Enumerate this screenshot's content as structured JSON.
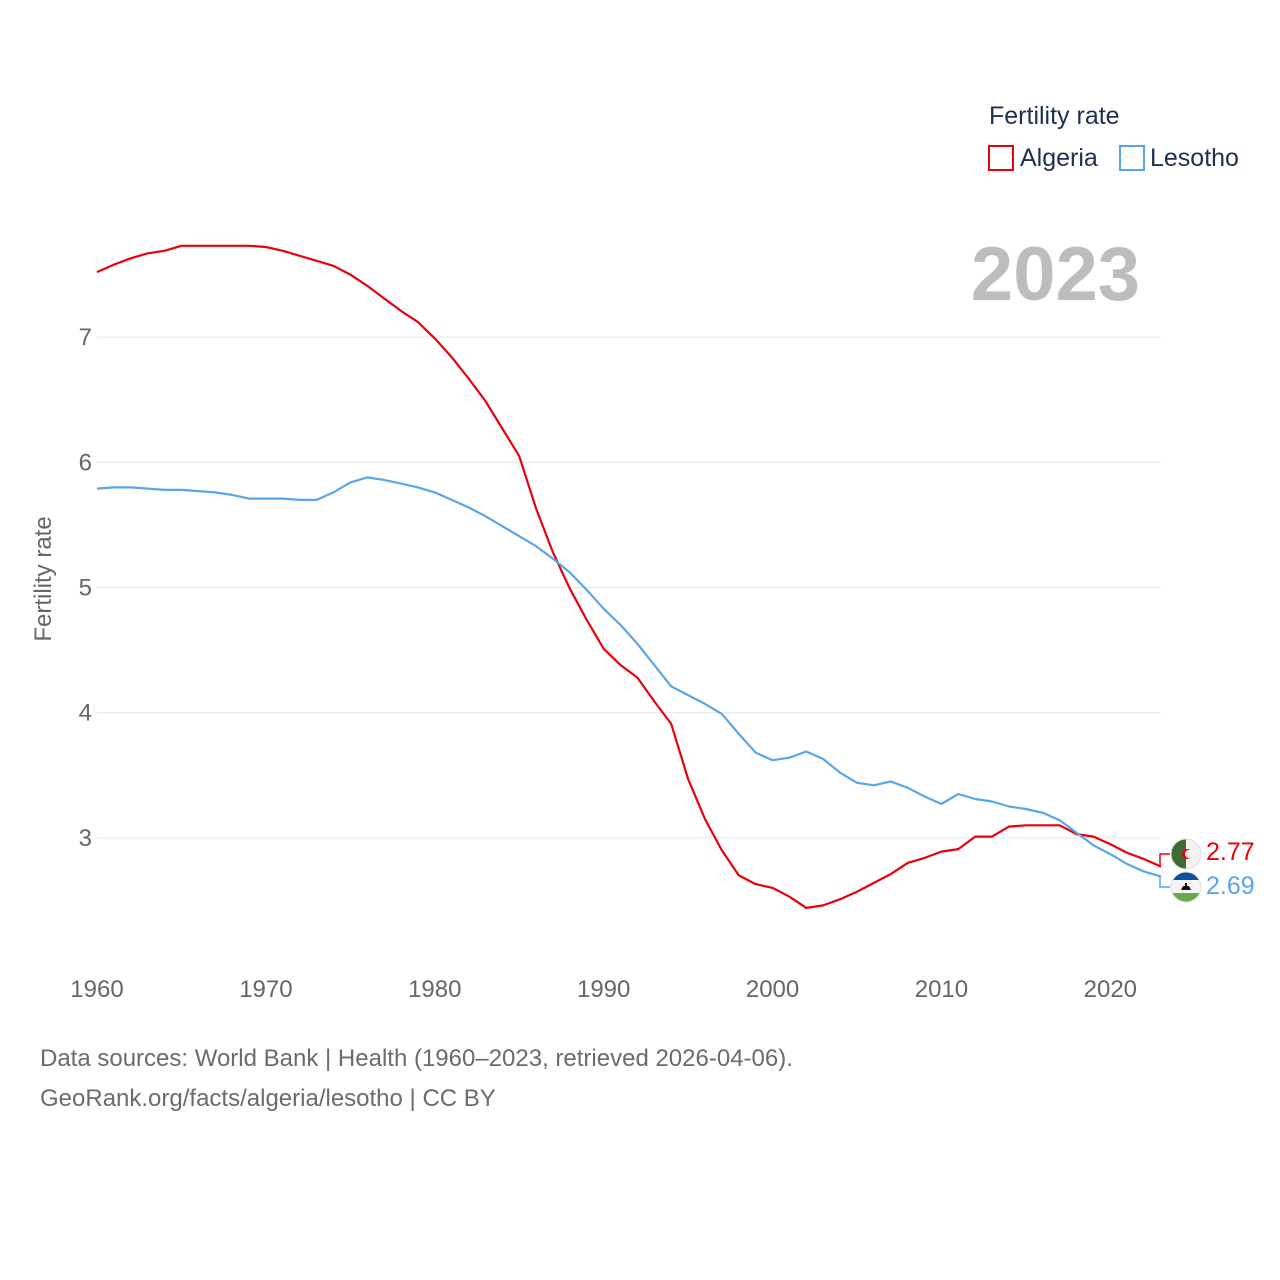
{
  "chart_data": {
    "type": "line",
    "ylabel": "Fertility rate",
    "xlabel": "",
    "xlim": [
      1960,
      2023
    ],
    "ylim": [
      2.0,
      8.0
    ],
    "x_ticks": [
      1960,
      1970,
      1980,
      1990,
      2000,
      2010,
      2020
    ],
    "y_ticks": [
      3,
      4,
      5,
      6,
      7
    ],
    "grid": true,
    "year_label": "2023",
    "legend": {
      "title": "Fertility rate",
      "placement": "top-right",
      "entries": [
        "Algeria",
        "Lesotho"
      ]
    },
    "x": [
      1960,
      1961,
      1962,
      1963,
      1964,
      1965,
      1966,
      1967,
      1968,
      1969,
      1970,
      1971,
      1972,
      1973,
      1974,
      1975,
      1976,
      1977,
      1978,
      1979,
      1980,
      1981,
      1982,
      1983,
      1984,
      1985,
      1986,
      1987,
      1988,
      1989,
      1990,
      1991,
      1992,
      1993,
      1994,
      1995,
      1996,
      1997,
      1998,
      1999,
      2000,
      2001,
      2002,
      2003,
      2004,
      2005,
      2006,
      2007,
      2008,
      2009,
      2010,
      2011,
      2012,
      2013,
      2014,
      2015,
      2016,
      2017,
      2018,
      2019,
      2020,
      2021,
      2022,
      2023
    ],
    "series": [
      {
        "name": "Algeria",
        "color": "#e8000b",
        "end_value_label": "2.77",
        "values": [
          7.52,
          7.58,
          7.63,
          7.67,
          7.69,
          7.73,
          7.73,
          7.73,
          7.73,
          7.73,
          7.72,
          7.69,
          7.65,
          7.61,
          7.57,
          7.5,
          7.41,
          7.31,
          7.21,
          7.12,
          6.99,
          6.84,
          6.67,
          6.49,
          6.27,
          6.05,
          5.63,
          5.28,
          4.99,
          4.74,
          4.51,
          4.38,
          4.28,
          4.09,
          3.91,
          3.47,
          3.15,
          2.9,
          2.7,
          2.63,
          2.6,
          2.53,
          2.44,
          2.46,
          2.51,
          2.57,
          2.64,
          2.71,
          2.8,
          2.84,
          2.89,
          2.91,
          3.01,
          3.01,
          3.09,
          3.1,
          3.1,
          3.1,
          3.03,
          3.01,
          2.95,
          2.88,
          2.83,
          2.77
        ]
      },
      {
        "name": "Lesotho",
        "color": "#5aa5e8",
        "end_value_label": "2.69",
        "values": [
          5.79,
          5.8,
          5.8,
          5.79,
          5.78,
          5.78,
          5.77,
          5.76,
          5.74,
          5.71,
          5.71,
          5.71,
          5.7,
          5.7,
          5.76,
          5.84,
          5.88,
          5.86,
          5.83,
          5.8,
          5.76,
          5.7,
          5.64,
          5.57,
          5.49,
          5.41,
          5.33,
          5.23,
          5.12,
          4.98,
          4.83,
          4.7,
          4.55,
          4.38,
          4.21,
          4.14,
          4.07,
          3.99,
          3.83,
          3.68,
          3.62,
          3.64,
          3.69,
          3.63,
          3.52,
          3.44,
          3.42,
          3.45,
          3.4,
          3.33,
          3.27,
          3.35,
          3.31,
          3.29,
          3.25,
          3.23,
          3.2,
          3.14,
          3.04,
          2.94,
          2.87,
          2.79,
          2.73,
          2.69
        ]
      }
    ]
  },
  "footer": {
    "line1": "Data sources: World Bank | Health (1960–2023, retrieved 2026-04-06).",
    "line2": "GeoRank.org/facts/algeria/lesotho | CC BY"
  }
}
